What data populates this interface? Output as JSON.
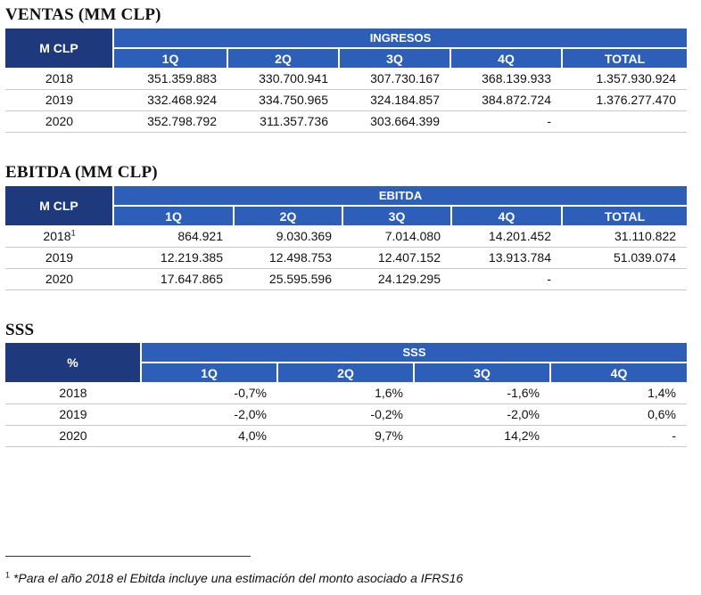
{
  "ventas": {
    "title": "VENTAS (MM CLP)",
    "corner_label": "M CLP",
    "group_label": "INGRESOS",
    "columns": [
      "1Q",
      "2Q",
      "3Q",
      "4Q",
      "TOTAL"
    ],
    "rows": [
      {
        "year": "2018",
        "values": [
          "351.359.883",
          "330.700.941",
          "307.730.167",
          "368.139.933",
          "1.357.930.924"
        ]
      },
      {
        "year": "2019",
        "values": [
          "332.468.924",
          "334.750.965",
          "324.184.857",
          "384.872.724",
          "1.376.277.470"
        ]
      },
      {
        "year": "2020",
        "values": [
          "352.798.792",
          "311.357.736",
          "303.664.399",
          "-",
          ""
        ]
      }
    ]
  },
  "ebitda": {
    "title": "EBITDA (MM CLP)",
    "corner_label": "M CLP",
    "group_label": "EBITDA",
    "columns": [
      "1Q",
      "2Q",
      "3Q",
      "4Q",
      "TOTAL"
    ],
    "rows": [
      {
        "year": "2018",
        "footnote_mark": "1",
        "values": [
          "864.921",
          "9.030.369",
          "7.014.080",
          "14.201.452",
          "31.110.822"
        ]
      },
      {
        "year": "2019",
        "footnote_mark": "",
        "values": [
          "12.219.385",
          "12.498.753",
          "12.407.152",
          "13.913.784",
          "51.039.074"
        ]
      },
      {
        "year": "2020",
        "footnote_mark": "",
        "values": [
          "17.647.865",
          "25.595.596",
          "24.129.295",
          "-",
          ""
        ]
      }
    ]
  },
  "sss": {
    "title": "SSS",
    "corner_label": "%",
    "group_label": "SSS",
    "columns": [
      "1Q",
      "2Q",
      "3Q",
      "4Q"
    ],
    "rows": [
      {
        "year": "2018",
        "values": [
          "-0,7%",
          "1,6%",
          "-1,6%",
          "1,4%"
        ]
      },
      {
        "year": "2019",
        "values": [
          "-2,0%",
          "-0,2%",
          "-2,0%",
          "0,6%"
        ]
      },
      {
        "year": "2020",
        "values": [
          "4,0%",
          "9,7%",
          "14,2%",
          "-"
        ]
      }
    ]
  },
  "footnote": {
    "mark": "1",
    "text": "*Para el año 2018 el Ebitda incluye una estimación del monto asociado a IFRS16"
  }
}
